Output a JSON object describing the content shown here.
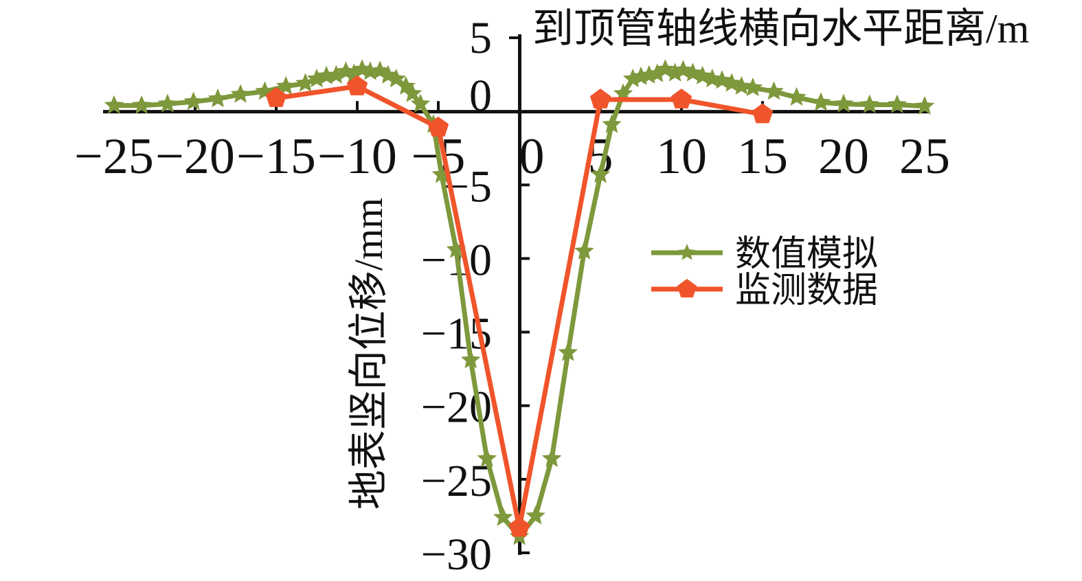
{
  "chart_data": {
    "type": "line",
    "title": "到顶管轴线横向水平距离/m",
    "xlabel": "到顶管轴线横向水平距离/m",
    "ylabel": "地表竖向位移/mm",
    "xlim": [
      -25,
      25
    ],
    "ylim": [
      -30,
      5
    ],
    "grid": false,
    "legend_position": "center-right",
    "x_ticks": [
      {
        "v": -25,
        "label": "−25"
      },
      {
        "v": -20,
        "label": "−20"
      },
      {
        "v": -15,
        "label": "−15"
      },
      {
        "v": -10,
        "label": "−10"
      },
      {
        "v": -5,
        "label": "−5"
      },
      {
        "v": 0,
        "label": "0"
      },
      {
        "v": 5,
        "label": "5"
      },
      {
        "v": 10,
        "label": "10"
      },
      {
        "v": 15,
        "label": "15"
      },
      {
        "v": 20,
        "label": "20"
      },
      {
        "v": 25,
        "label": "25"
      }
    ],
    "y_ticks": [
      {
        "v": 5,
        "label": "5"
      },
      {
        "v": 0,
        "label": "0"
      },
      {
        "v": -5,
        "label": "−5"
      },
      {
        "v": -10,
        "label": "−10"
      },
      {
        "v": -15,
        "label": "−15"
      },
      {
        "v": -20,
        "label": "−20"
      },
      {
        "v": -25,
        "label": "−25"
      },
      {
        "v": -30,
        "label": "−30"
      }
    ],
    "series": [
      {
        "name": "数值模拟",
        "color": "#7E983C",
        "marker": "star",
        "points": [
          [
            -25,
            0.4
          ],
          [
            -23.3,
            0.4
          ],
          [
            -21.7,
            0.5
          ],
          [
            -20.1,
            0.65
          ],
          [
            -18.6,
            0.85
          ],
          [
            -17.2,
            1.15
          ],
          [
            -15.7,
            1.35
          ],
          [
            -14.4,
            1.7
          ],
          [
            -13.2,
            1.9
          ],
          [
            -12.5,
            2.2
          ],
          [
            -11.9,
            2.4
          ],
          [
            -11.3,
            2.45
          ],
          [
            -10.7,
            2.7
          ],
          [
            -10.2,
            2.55
          ],
          [
            -9.7,
            2.85
          ],
          [
            -9.2,
            2.7
          ],
          [
            -8.6,
            2.75
          ],
          [
            -8.1,
            2.45
          ],
          [
            -7.6,
            2.2
          ],
          [
            -7,
            1.7
          ],
          [
            -6.6,
            1.2
          ],
          [
            -6.1,
            0.5
          ],
          [
            -5.3,
            -0.9
          ],
          [
            -4.8,
            -4.3
          ],
          [
            -3.9,
            -9.4
          ],
          [
            -3,
            -16.9
          ],
          [
            -2,
            -23.6
          ],
          [
            -1,
            -27.6
          ],
          [
            0,
            -28.9
          ],
          [
            1,
            -27.5
          ],
          [
            2,
            -23.6
          ],
          [
            3,
            -16.4
          ],
          [
            4,
            -9.5
          ],
          [
            5,
            -4.3
          ],
          [
            5.7,
            -0.9
          ],
          [
            6.4,
            1.2
          ],
          [
            7,
            2.2
          ],
          [
            7.5,
            2.35
          ],
          [
            8,
            2.45
          ],
          [
            8.5,
            2.55
          ],
          [
            9,
            2.85
          ],
          [
            9.6,
            2.6
          ],
          [
            10.1,
            2.8
          ],
          [
            10.7,
            2.6
          ],
          [
            11.3,
            2.4
          ],
          [
            11.9,
            2.2
          ],
          [
            12.5,
            2.1
          ],
          [
            13.1,
            1.9
          ],
          [
            13.7,
            1.7
          ],
          [
            14.4,
            1.6
          ],
          [
            15.7,
            1.35
          ],
          [
            17.1,
            0.95
          ],
          [
            18.6,
            0.6
          ],
          [
            20,
            0.5
          ],
          [
            21.6,
            0.45
          ],
          [
            23.3,
            0.45
          ],
          [
            25,
            0.35
          ]
        ]
      },
      {
        "name": "监测数据",
        "color": "#F0542A",
        "marker": "pentagon",
        "points": [
          [
            -15,
            0.9
          ],
          [
            -10,
            1.7
          ],
          [
            -5,
            -1.1
          ],
          [
            0,
            -28.3
          ],
          [
            5,
            0.8
          ],
          [
            10,
            0.8
          ],
          [
            15,
            -0.2
          ]
        ]
      }
    ]
  },
  "colors": {
    "background": "#ffffff",
    "axis": "#111111",
    "text": "#111111",
    "simulation": "#7E983C",
    "monitoring": "#F0542A"
  }
}
